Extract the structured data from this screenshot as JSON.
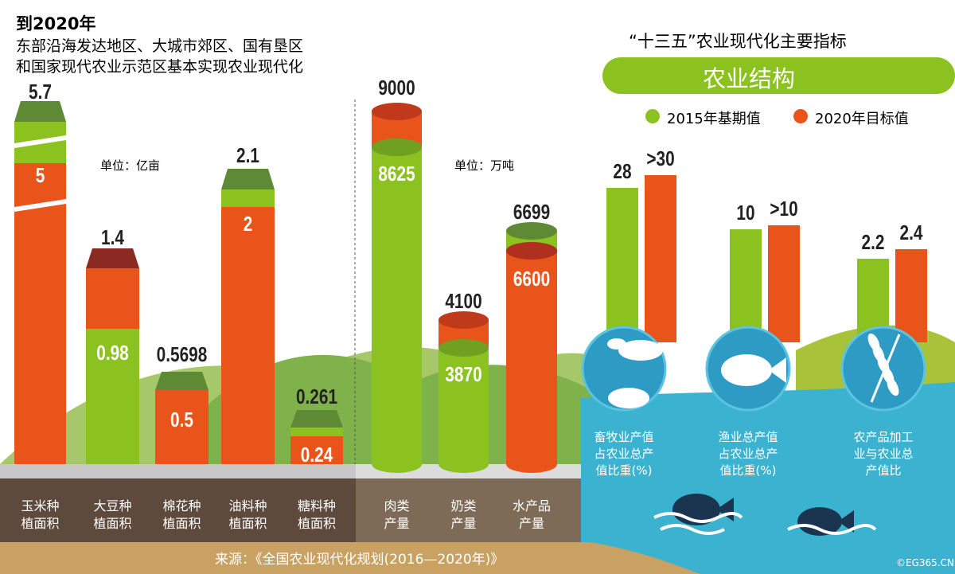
{
  "header": {
    "year": "到2020年",
    "line1": "东部沿海发达地区、大城市郊区、国有垦区",
    "line2": "和国家现代农业示范区基本实现农业现代化"
  },
  "right_header": {
    "title": "“十三五”农业现代化主要指标",
    "banner": "农业结构",
    "legend": [
      "2015年基期值",
      "2020年目标值"
    ]
  },
  "colors": {
    "green": "#8cc21f",
    "orange": "#e8541a",
    "dark_green": "#5e8a35",
    "dark_red": "#8a2a22",
    "water": "#3bb3d0",
    "brown": "#5e4a3d",
    "brown_light": "#7d6a57",
    "tan": "#c9a263"
  },
  "chart_data": [
    {
      "type": "bar",
      "unit_label": "单位：亿亩",
      "categories": [
        "玉米种植面积",
        "大豆种植面积",
        "棉花种植面积",
        "油料种植面积",
        "糖料种植面积"
      ],
      "series": [
        {
          "values": [
            5.7,
            1.4,
            0.5698,
            2.1,
            0.261
          ]
        },
        {
          "values": [
            5.0,
            0.98,
            0.5,
            2.0,
            0.24
          ]
        }
      ]
    },
    {
      "type": "bar",
      "unit_label": "单位：万吨",
      "categories": [
        "肉类产量",
        "奶类产量",
        "水产品产量"
      ],
      "series": [
        {
          "values": [
            9000,
            4100,
            6699
          ]
        },
        {
          "values": [
            8625,
            3870,
            6600
          ]
        }
      ]
    },
    {
      "type": "bar",
      "categories": [
        "畜牧业产值占农业总产值比重(%)",
        "渔业总产值占农业总产值比重(%)",
        "农产品加工业与农业总产值比"
      ],
      "series": [
        {
          "name": "2015年基期值",
          "values": [
            "28",
            "10",
            "2.2"
          ]
        },
        {
          "name": "2020年目标值",
          "values": [
            ">30",
            ">10",
            "2.4"
          ]
        }
      ]
    }
  ],
  "labels1": [
    [
      "玉米种",
      "植面积"
    ],
    [
      "大豆种",
      "植面积"
    ],
    [
      "棉花种",
      "植面积"
    ],
    [
      "油料种",
      "植面积"
    ],
    [
      "糖料种",
      "植面积"
    ]
  ],
  "labels2": [
    [
      "肉类",
      "产量"
    ],
    [
      "奶类",
      "产量"
    ],
    [
      "水产品",
      "产量"
    ]
  ],
  "labels3": [
    [
      "畜牧业产值",
      "占农业总产",
      "值比重(%)"
    ],
    [
      "渔业总产值",
      "占农业总产",
      "值比重(%)"
    ],
    [
      "农产品加工",
      "业与农业总",
      "产值比"
    ]
  ],
  "icons": [
    "cattle-pig-icon",
    "fish-icon",
    "wheat-icon"
  ],
  "footer": {
    "source": "来源：《全国农业现代化规划(2016—2020年)》",
    "credit": "©EG365.CN"
  }
}
